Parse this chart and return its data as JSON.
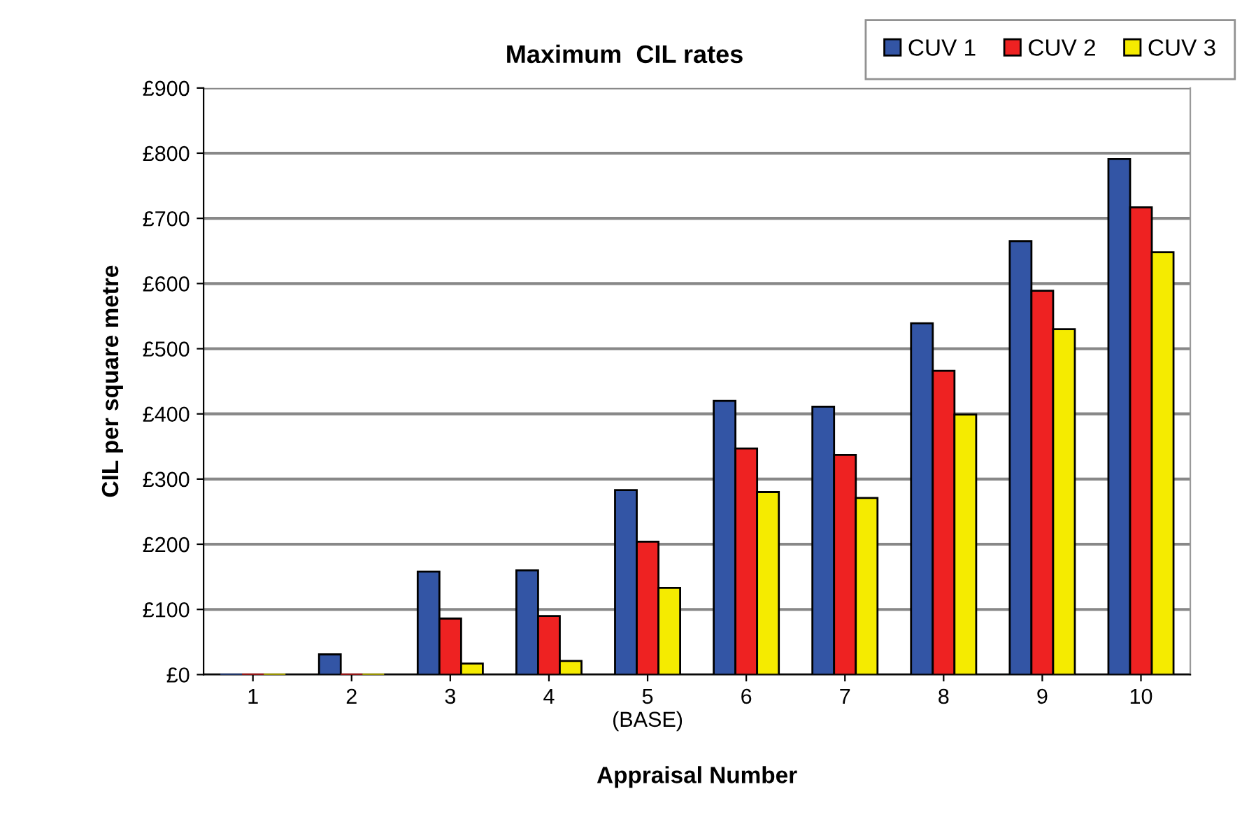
{
  "chart_data": {
    "type": "bar",
    "title": "Maximum  CIL rates",
    "xlabel": "Appraisal Number",
    "ylabel": "CIL per square metre",
    "categories": [
      "1",
      "2",
      "3",
      "4",
      "5\n(BASE)",
      "6",
      "7",
      "8",
      "9",
      "10"
    ],
    "series": [
      {
        "name": "CUV 1",
        "color": "#3355a5",
        "values": [
          0,
          31,
          158,
          160,
          283,
          420,
          411,
          539,
          665,
          791
        ]
      },
      {
        "name": "CUV 2",
        "color": "#ee2222",
        "values": [
          0,
          0,
          86,
          90,
          204,
          347,
          337,
          466,
          589,
          717
        ]
      },
      {
        "name": "CUV 3",
        "color": "#f5eb00",
        "values": [
          0,
          0,
          17,
          21,
          133,
          280,
          271,
          399,
          530,
          648
        ]
      }
    ],
    "ylim": [
      0,
      900
    ],
    "yticks": [
      {
        "value": 0,
        "label": "£0"
      },
      {
        "value": 100,
        "label": "£100"
      },
      {
        "value": 200,
        "label": "£200"
      },
      {
        "value": 300,
        "label": "£300"
      },
      {
        "value": 400,
        "label": "£400"
      },
      {
        "value": 500,
        "label": "£500"
      },
      {
        "value": 600,
        "label": "£600"
      },
      {
        "value": 700,
        "label": "£700"
      },
      {
        "value": 800,
        "label": "£800"
      },
      {
        "value": 900,
        "label": "£900"
      }
    ],
    "grid": "y",
    "legend": "top right"
  }
}
